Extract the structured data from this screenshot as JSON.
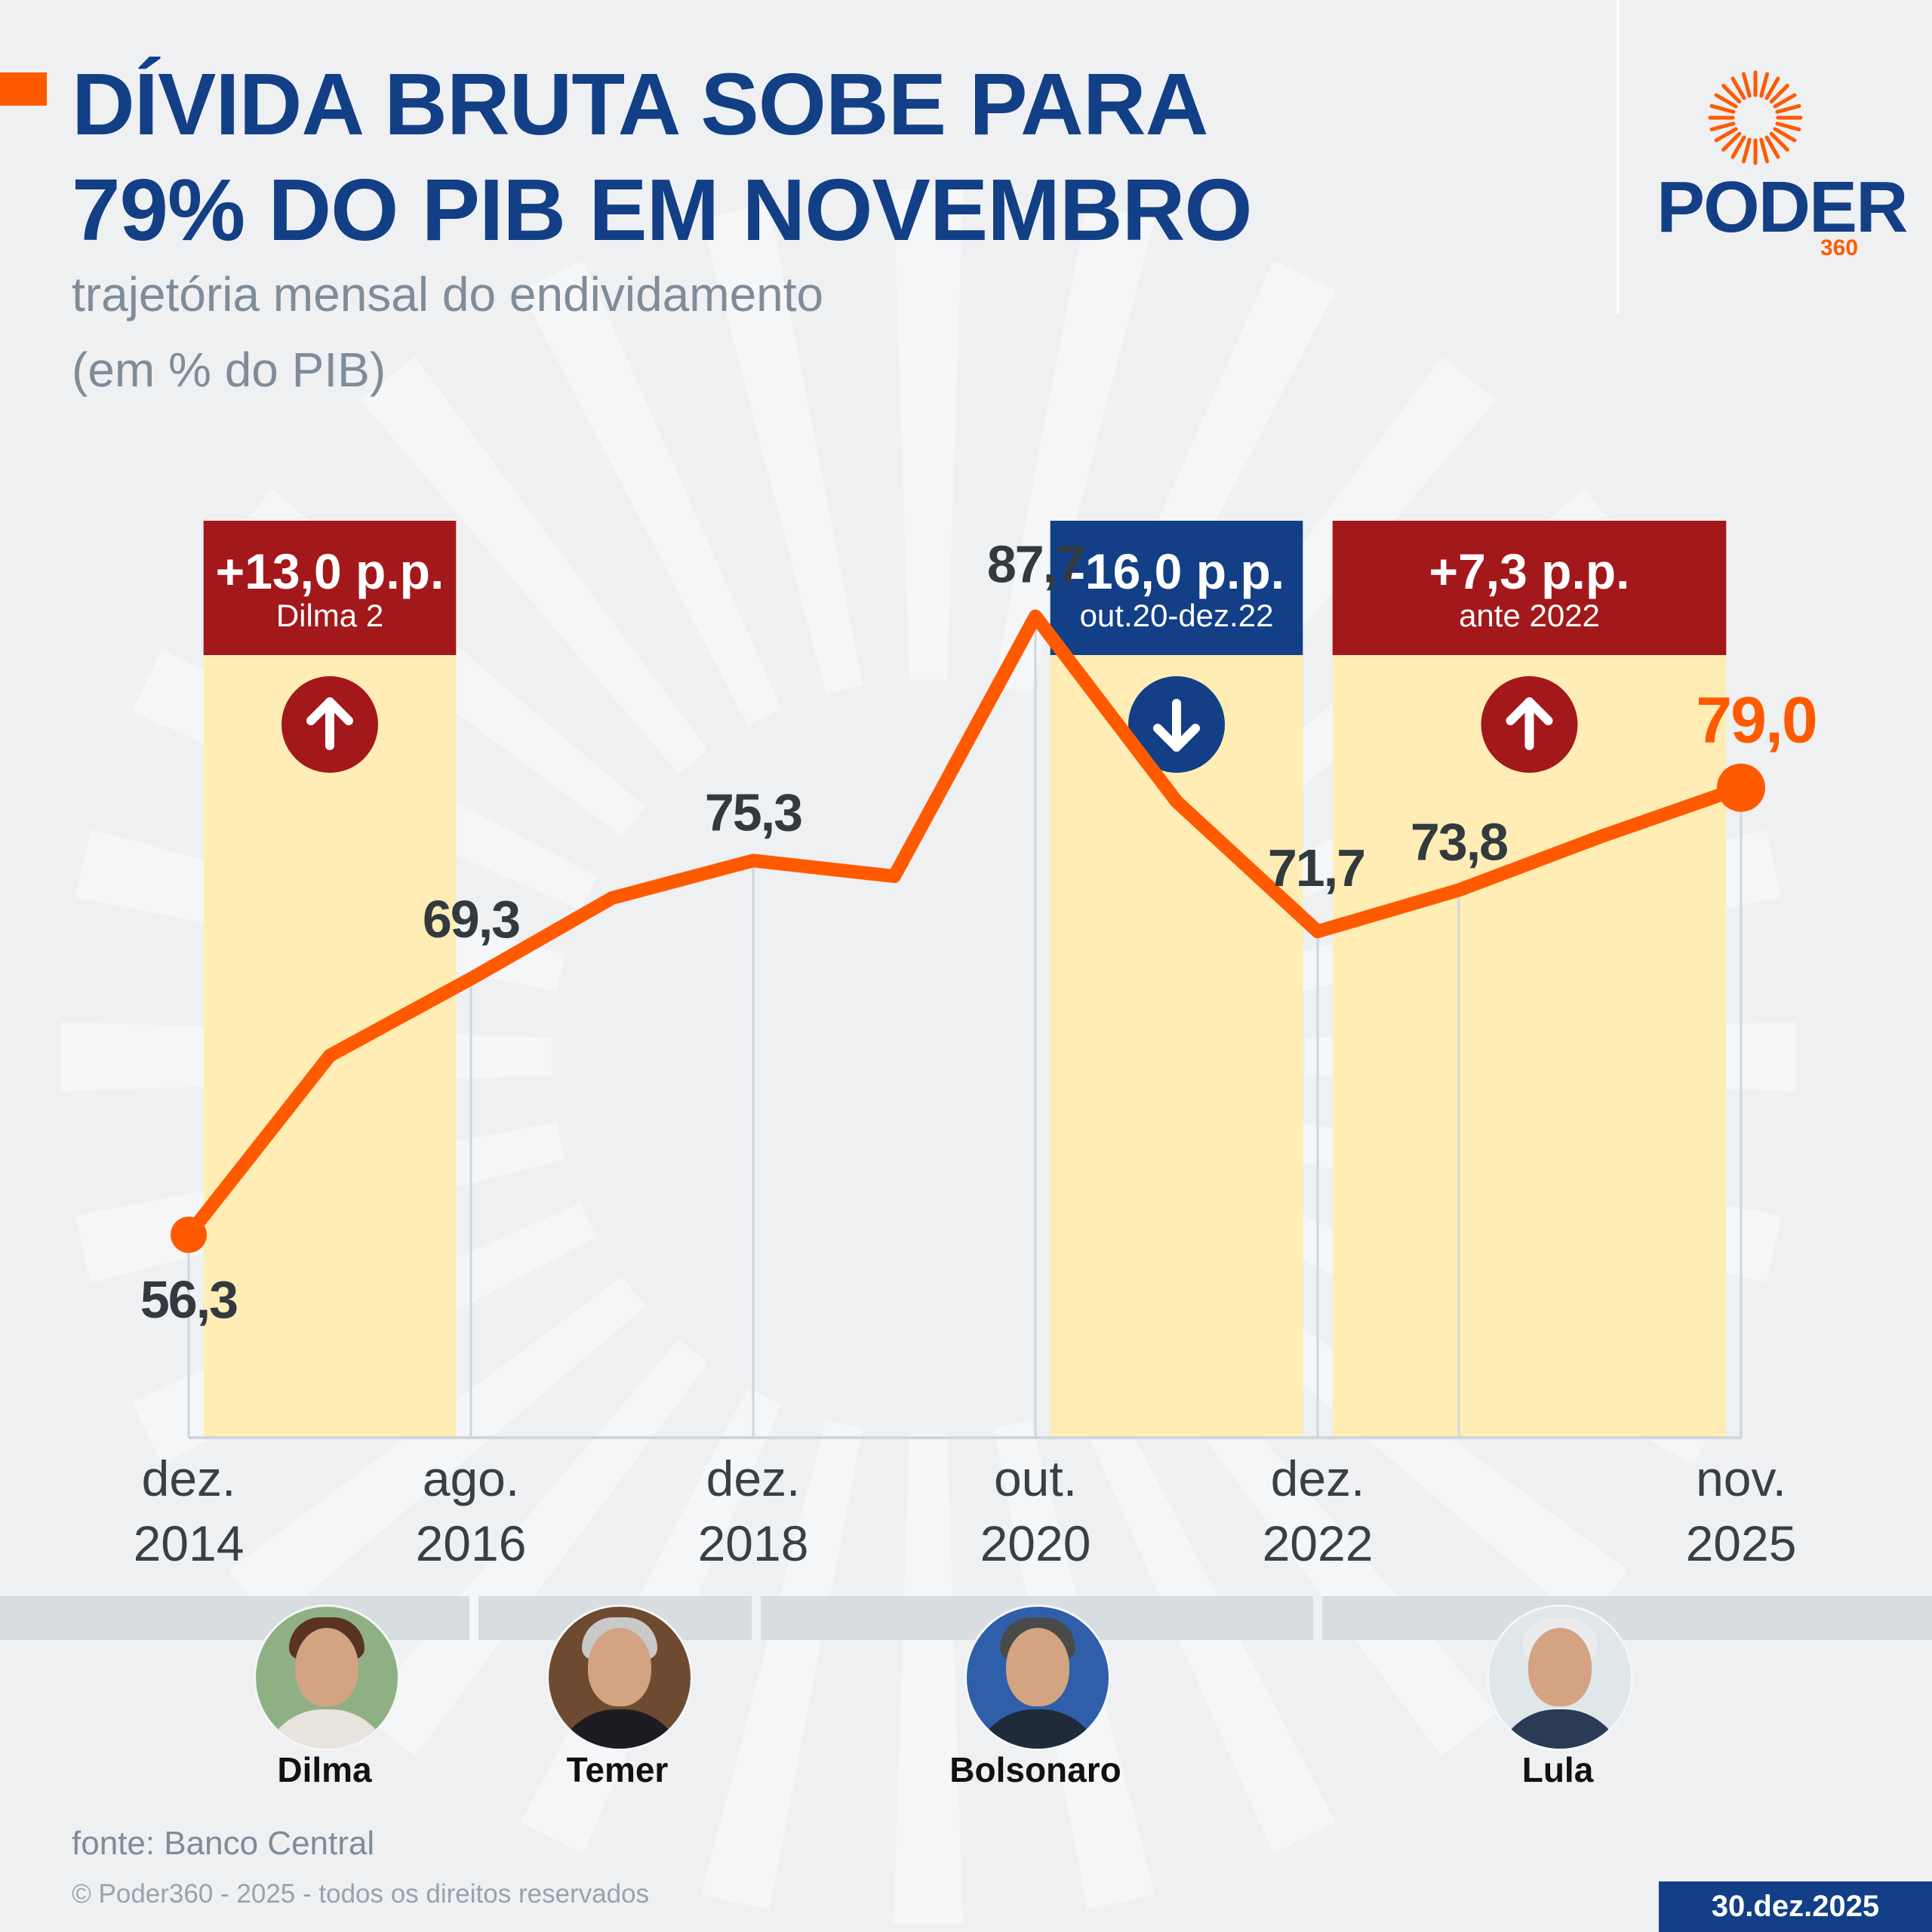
{
  "header": {
    "title_line1": "DÍVIDA BRUTA SOBE PARA",
    "title_line2": "79% DO PIB EM NOVEMBRO",
    "subtitle_line1": "trajetória mensal do endividamento",
    "subtitle_line2": "(em % do PIB)"
  },
  "logo": {
    "word": "PODER",
    "number": "360"
  },
  "colors": {
    "title": "#123f86",
    "accent": "#ff5a00",
    "highlight": "#ffedb5",
    "red_box": "#a3181b",
    "blue_box": "#123f86",
    "value_text": "#333a3f",
    "axis_text": "#3a3f44"
  },
  "chart_data": {
    "type": "line",
    "ylabel": "em % do PIB",
    "ylim": [
      46,
      90
    ],
    "x_tick_labels": [
      {
        "index": 0,
        "line1": "dez.",
        "line2": "2014"
      },
      {
        "index": 2,
        "line1": "ago.",
        "line2": "2016"
      },
      {
        "index": 4,
        "line1": "dez.",
        "line2": "2018"
      },
      {
        "index": 6,
        "line1": "out.",
        "line2": "2020"
      },
      {
        "index": 8,
        "line1": "dez.",
        "line2": "2022"
      },
      {
        "index": 11,
        "line1": "nov.",
        "line2": "2025"
      }
    ],
    "series": [
      {
        "values": [
          56.3,
          65.4,
          69.3,
          73.4,
          75.3,
          74.5,
          87.7,
          78.3,
          71.7,
          73.8,
          76.5,
          79.0
        ]
      }
    ],
    "data_labels": [
      {
        "index": 0,
        "text": "56,3"
      },
      {
        "index": 2,
        "text": "69,3"
      },
      {
        "index": 4,
        "text": "75,3"
      },
      {
        "index": 6,
        "text": "87,7"
      },
      {
        "index": 8,
        "text": "71,7"
      },
      {
        "index": 9,
        "text": "73,8"
      },
      {
        "index": 11,
        "text": "79,0"
      }
    ],
    "highlight_periods": [
      {
        "from_index": 0.1,
        "to_index": 1.9,
        "value": "+13,0 p.p.",
        "label": "Dilma 2",
        "direction": "up",
        "color": "#a3181b"
      },
      {
        "from_index": 6.1,
        "to_index": 7.9,
        "value": "-16,0 p.p.",
        "label": "out.20-dez.22",
        "direction": "down",
        "color": "#123f86"
      },
      {
        "from_index": 8.1,
        "to_index": 10.9,
        "value": "+7,3 p.p.",
        "label": "ante 2022",
        "direction": "up",
        "color": "#a3181b"
      }
    ]
  },
  "presidents": [
    {
      "name": "Dilma"
    },
    {
      "name": "Temer"
    },
    {
      "name": "Bolsonaro"
    },
    {
      "name": "Lula"
    }
  ],
  "footer": {
    "source": "fonte: Banco Central",
    "copyright": "© Poder360 - 2025 - todos os direitos reservados",
    "date": "30.dez.2025"
  }
}
